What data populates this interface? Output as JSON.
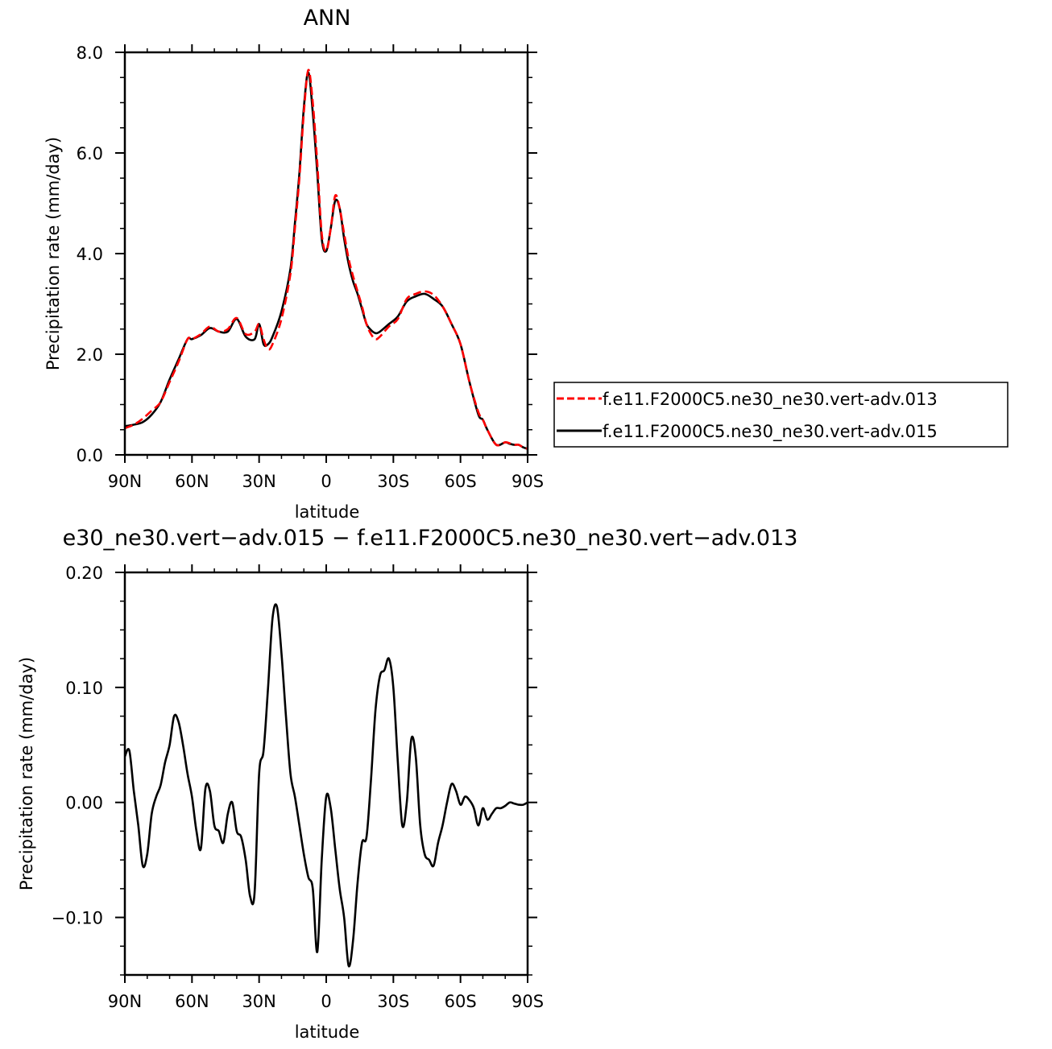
{
  "chart_data": [
    {
      "type": "line",
      "title": "ANN",
      "xlabel": "latitude",
      "ylabel": "Precipitation rate (mm/day)",
      "xlim": [
        90,
        -90
      ],
      "ylim": [
        0,
        8
      ],
      "x_ticks": [
        {
          "value": 90,
          "label": "90N"
        },
        {
          "value": 60,
          "label": "60N"
        },
        {
          "value": 30,
          "label": "30N"
        },
        {
          "value": 0,
          "label": "0"
        },
        {
          "value": -30,
          "label": "30S"
        },
        {
          "value": -60,
          "label": "60S"
        },
        {
          "value": -90,
          "label": "90S"
        }
      ],
      "y_ticks": [
        {
          "value": 0,
          "label": "0.0"
        },
        {
          "value": 2,
          "label": "2.0"
        },
        {
          "value": 4,
          "label": "4.0"
        },
        {
          "value": 6,
          "label": "6.0"
        },
        {
          "value": 8,
          "label": "8.0"
        }
      ],
      "legend_position": "right",
      "series": [
        {
          "name": "f.e11.F2000C5.ne30_ne30.vert-adv.013",
          "color": "#ff0000",
          "dash": "dashed",
          "x": [
            90,
            86,
            82,
            78,
            74,
            70,
            66,
            62,
            60,
            56,
            52,
            48,
            44,
            40,
            36,
            32,
            30,
            28,
            26,
            24,
            20,
            16,
            14,
            12,
            10,
            8,
            6,
            4,
            2,
            0,
            -2,
            -4,
            -6,
            -8,
            -10,
            -12,
            -14,
            -16,
            -18,
            -20,
            -22,
            -24,
            -28,
            -32,
            -36,
            -40,
            -44,
            -48,
            -52,
            -56,
            -60,
            -64,
            -68,
            -70,
            -72,
            -76,
            -80,
            -82,
            -84,
            -86,
            -88,
            -90
          ],
          "y": [
            0.53,
            0.6,
            0.72,
            0.88,
            1.05,
            1.45,
            1.85,
            2.3,
            2.3,
            2.4,
            2.55,
            2.45,
            2.5,
            2.72,
            2.4,
            2.45,
            2.6,
            2.3,
            2.1,
            2.2,
            2.7,
            3.6,
            4.5,
            5.5,
            6.8,
            7.65,
            7.0,
            5.8,
            4.4,
            4.05,
            4.5,
            5.15,
            4.9,
            4.4,
            3.9,
            3.55,
            3.25,
            2.95,
            2.6,
            2.4,
            2.3,
            2.35,
            2.55,
            2.7,
            3.1,
            3.2,
            3.25,
            3.18,
            2.95,
            2.6,
            2.2,
            1.45,
            0.85,
            0.7,
            0.5,
            0.2,
            0.25,
            0.23,
            0.2,
            0.2,
            0.15,
            0.12
          ]
        },
        {
          "name": "f.e11.F2000C5.ne30_ne30.vert-adv.015",
          "color": "#000000",
          "dash": "solid",
          "x": [
            90,
            86,
            82,
            78,
            74,
            70,
            66,
            62,
            60,
            56,
            52,
            48,
            44,
            40,
            36,
            32,
            30,
            28,
            26,
            24,
            20,
            16,
            14,
            12,
            10,
            8,
            6,
            4,
            2,
            0,
            -2,
            -4,
            -6,
            -8,
            -10,
            -12,
            -14,
            -16,
            -18,
            -20,
            -22,
            -24,
            -28,
            -32,
            -36,
            -40,
            -44,
            -48,
            -52,
            -56,
            -60,
            -64,
            -68,
            -70,
            -72,
            -76,
            -80,
            -82,
            -84,
            -86,
            -88,
            -90
          ],
          "y": [
            0.57,
            0.6,
            0.65,
            0.8,
            1.05,
            1.5,
            1.9,
            2.3,
            2.3,
            2.38,
            2.52,
            2.45,
            2.45,
            2.7,
            2.35,
            2.3,
            2.6,
            2.2,
            2.2,
            2.35,
            2.85,
            3.7,
            4.6,
            5.6,
            6.9,
            7.6,
            6.8,
            5.6,
            4.3,
            4.05,
            4.5,
            5.05,
            4.9,
            4.3,
            3.8,
            3.45,
            3.2,
            2.9,
            2.6,
            2.48,
            2.42,
            2.45,
            2.6,
            2.75,
            3.05,
            3.15,
            3.2,
            3.1,
            2.95,
            2.6,
            2.2,
            1.45,
            0.8,
            0.7,
            0.5,
            0.2,
            0.25,
            0.22,
            0.2,
            0.2,
            0.15,
            0.12
          ]
        }
      ]
    },
    {
      "type": "line",
      "title": "e30_ne30.vert−adv.015 − f.e11.F2000C5.ne30_ne30.vert−adv.013",
      "xlabel": "latitude",
      "ylabel": "Precipitation rate (mm/day)",
      "xlim": [
        90,
        -90
      ],
      "ylim": [
        -0.15,
        0.2
      ],
      "x_ticks": [
        {
          "value": 90,
          "label": "90N"
        },
        {
          "value": 60,
          "label": "60N"
        },
        {
          "value": 30,
          "label": "30N"
        },
        {
          "value": 0,
          "label": "0"
        },
        {
          "value": -30,
          "label": "30S"
        },
        {
          "value": -60,
          "label": "60S"
        },
        {
          "value": -90,
          "label": "90S"
        }
      ],
      "y_ticks": [
        {
          "value": -0.1,
          "label": "−0.10"
        },
        {
          "value": 0,
          "label": "0.00"
        },
        {
          "value": 0.1,
          "label": "0.10"
        },
        {
          "value": 0.2,
          "label": "0.20"
        }
      ],
      "series": [
        {
          "color": "#000000",
          "dash": "solid",
          "x": [
            90,
            88,
            86,
            84,
            82,
            80,
            78,
            76,
            74,
            72,
            70,
            68,
            66,
            64,
            62,
            60,
            58,
            56,
            54,
            52,
            50,
            48,
            46,
            44,
            42,
            40,
            38,
            36,
            34,
            32,
            30,
            28,
            26,
            24,
            22,
            20,
            18,
            16,
            14,
            12,
            10,
            8,
            6,
            4,
            2,
            0,
            -2,
            -4,
            -6,
            -8,
            -10,
            -12,
            -14,
            -16,
            -18,
            -20,
            -22,
            -24,
            -26,
            -28,
            -30,
            -32,
            -34,
            -36,
            -38,
            -40,
            -42,
            -44,
            -46,
            -48,
            -50,
            -52,
            -54,
            -56,
            -58,
            -60,
            -62,
            -64,
            -66,
            -68,
            -70,
            -72,
            -74,
            -76,
            -78,
            -80,
            -82,
            -84,
            -86,
            -88,
            -90
          ],
          "y": [
            0.04,
            0.045,
            0.01,
            -0.02,
            -0.055,
            -0.045,
            -0.01,
            0.005,
            0.015,
            0.035,
            0.05,
            0.075,
            0.07,
            0.05,
            0.025,
            0.005,
            -0.025,
            -0.04,
            0.012,
            0.01,
            -0.02,
            -0.025,
            -0.035,
            -0.01,
            0.0,
            -0.025,
            -0.03,
            -0.05,
            -0.082,
            -0.078,
            0.025,
            0.045,
            0.1,
            0.16,
            0.17,
            0.13,
            0.075,
            0.025,
            0.005,
            -0.02,
            -0.045,
            -0.065,
            -0.075,
            -0.13,
            -0.05,
            0.005,
            -0.005,
            -0.04,
            -0.075,
            -0.1,
            -0.142,
            -0.12,
            -0.07,
            -0.035,
            -0.03,
            0.02,
            0.08,
            0.11,
            0.115,
            0.125,
            0.1,
            0.035,
            -0.02,
            0.0,
            0.055,
            0.04,
            -0.02,
            -0.045,
            -0.05,
            -0.055,
            -0.035,
            -0.02,
            0.0,
            0.016,
            0.01,
            -0.002,
            0.005,
            0.002,
            -0.005,
            -0.02,
            -0.005,
            -0.015,
            -0.01,
            -0.005,
            -0.005,
            -0.003,
            0.0,
            -0.001,
            -0.002,
            -0.002,
            0.0
          ]
        }
      ]
    }
  ]
}
